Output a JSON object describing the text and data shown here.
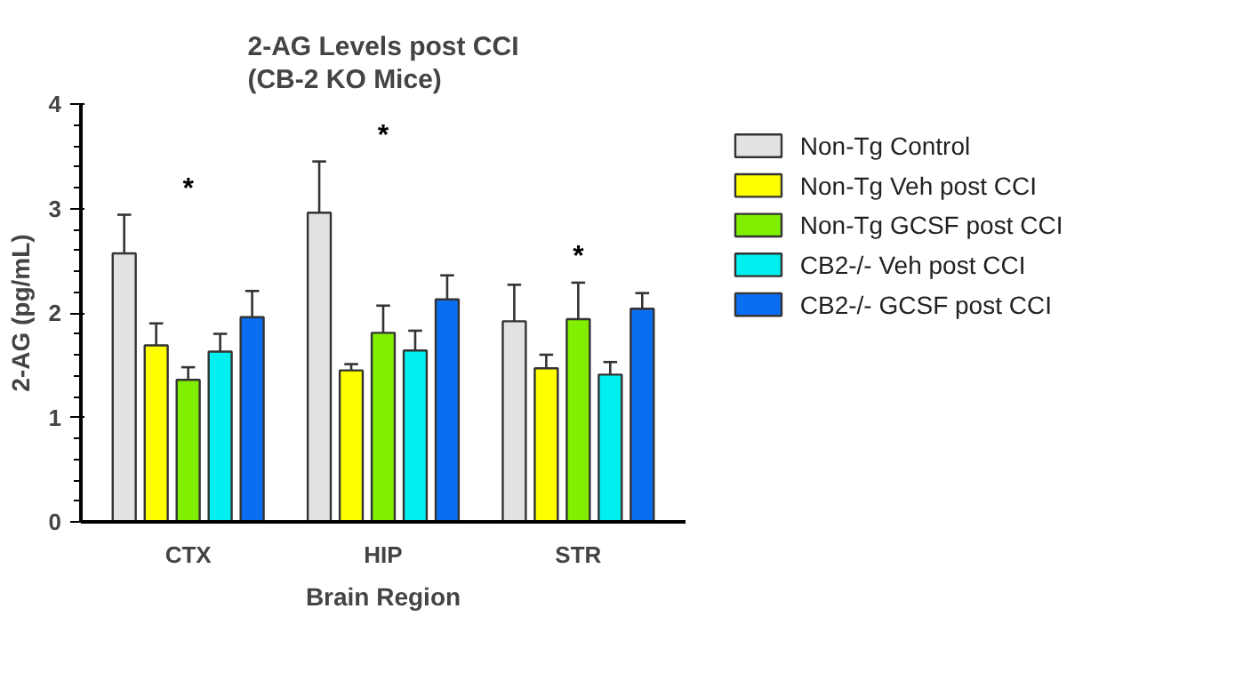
{
  "chart_data": {
    "type": "bar",
    "title": "2-AG Levels post CCI\n(CB-2 KO Mice)",
    "xlabel": "Brain Region",
    "ylabel": "2-AG (pg/mL)",
    "categories": [
      "CTX",
      "HIP",
      "STR"
    ],
    "series": [
      {
        "name": "Non-Tg Control",
        "color": "#e2e2e2",
        "values": [
          2.57,
          2.96,
          1.92
        ],
        "errors": [
          [
            2.57,
            2.94
          ],
          [
            2.96,
            3.45
          ],
          [
            1.92,
            2.27
          ]
        ]
      },
      {
        "name": "Non-Tg Veh post CCI",
        "color": "#ffff00",
        "values": [
          1.69,
          1.45,
          1.47
        ],
        "errors": [
          [
            1.69,
            1.9
          ],
          [
            1.45,
            1.51
          ],
          [
            1.47,
            1.6
          ]
        ]
      },
      {
        "name": "Non-Tg GCSF post CCI",
        "color": "#80f000",
        "values": [
          1.36,
          1.81,
          1.94
        ],
        "errors": [
          [
            1.36,
            1.48
          ],
          [
            1.81,
            2.07
          ],
          [
            1.94,
            2.29
          ]
        ]
      },
      {
        "name": "CB2-/- Veh post CCI",
        "color": "#00f0f0",
        "values": [
          1.63,
          1.64,
          1.41
        ],
        "errors": [
          [
            1.63,
            1.8
          ],
          [
            1.64,
            1.83
          ],
          [
            1.41,
            1.53
          ]
        ]
      },
      {
        "name": "CB2-/- GCSF post CCI",
        "color": "#0a6ef0",
        "values": [
          1.96,
          2.13,
          2.04
        ],
        "errors": [
          [
            1.96,
            2.21
          ],
          [
            2.13,
            2.36
          ],
          [
            2.04,
            2.19
          ]
        ]
      }
    ],
    "ylim": [
      0,
      4
    ],
    "yticks": [
      0,
      1,
      2,
      3,
      4
    ],
    "grid": false,
    "legend": "right",
    "annotations": [
      "*",
      "*",
      "*"
    ]
  }
}
